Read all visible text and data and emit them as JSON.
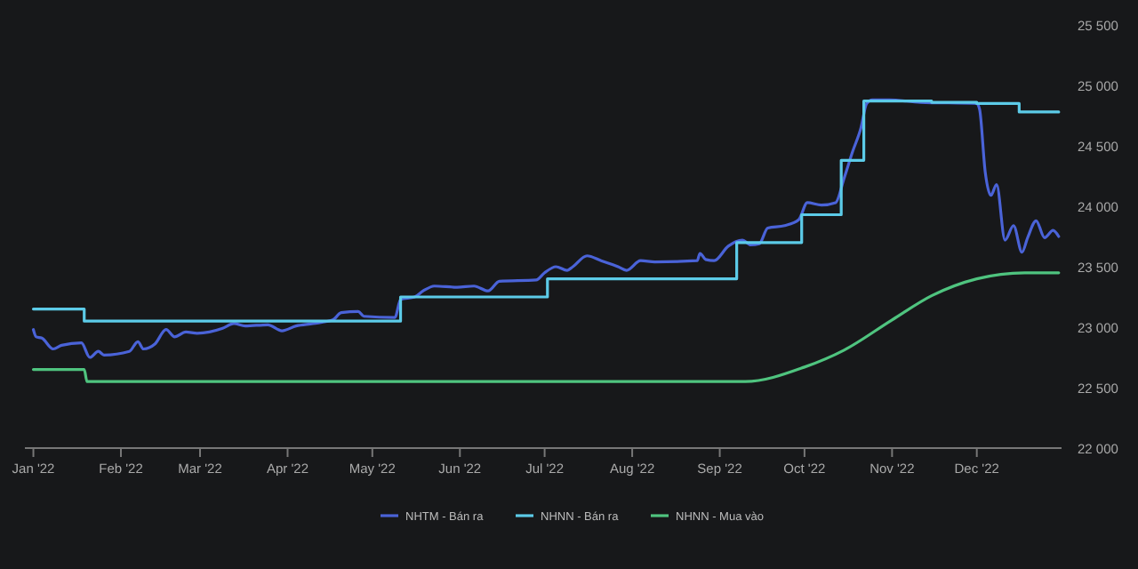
{
  "chart_data": {
    "type": "line",
    "legend": "bottom",
    "grid": false,
    "xlim": [
      "2021-12-29",
      "2022-12-31"
    ],
    "xticks": [
      {
        "value": "2022-01-01",
        "label": "Jan '22"
      },
      {
        "value": "2022-02-01",
        "label": "Feb '22"
      },
      {
        "value": "2022-03-01",
        "label": "Mar '22"
      },
      {
        "value": "2022-04-01",
        "label": "Apr '22"
      },
      {
        "value": "2022-05-01",
        "label": "May '22"
      },
      {
        "value": "2022-06-01",
        "label": "Jun '22"
      },
      {
        "value": "2022-07-01",
        "label": "Jul '22"
      },
      {
        "value": "2022-08-01",
        "label": "Aug '22"
      },
      {
        "value": "2022-09-01",
        "label": "Sep '22"
      },
      {
        "value": "2022-10-01",
        "label": "Oct '22"
      },
      {
        "value": "2022-11-01",
        "label": "Nov '22"
      },
      {
        "value": "2022-12-01",
        "label": "Dec '22"
      }
    ],
    "ylim": [
      22000,
      25500
    ],
    "yticks": [
      {
        "value": 22000,
        "label": "22 000"
      },
      {
        "value": 22500,
        "label": "22 500"
      },
      {
        "value": 23000,
        "label": "23 000"
      },
      {
        "value": 23500,
        "label": "23 500"
      },
      {
        "value": 24000,
        "label": "24 000"
      },
      {
        "value": 24500,
        "label": "24 500"
      },
      {
        "value": 25000,
        "label": "25 000"
      },
      {
        "value": 25500,
        "label": "25 500"
      }
    ],
    "series": [
      {
        "name": "NHTM - Bán ra",
        "color": "#4a63d8",
        "x": [
          "2022-01-01",
          "2022-01-02",
          "2022-01-04",
          "2022-01-08",
          "2022-01-11",
          "2022-01-18",
          "2022-01-21",
          "2022-01-24",
          "2022-01-26",
          "2022-02-04",
          "2022-02-07",
          "2022-02-09",
          "2022-02-13",
          "2022-02-17",
          "2022-02-20",
          "2022-02-24",
          "2022-02-28",
          "2022-03-09",
          "2022-03-13",
          "2022-03-17",
          "2022-03-25",
          "2022-03-30",
          "2022-04-04",
          "2022-04-10",
          "2022-04-17",
          "2022-04-20",
          "2022-04-26",
          "2022-04-28",
          "2022-05-09",
          "2022-05-11",
          "2022-05-16",
          "2022-05-19",
          "2022-05-23",
          "2022-05-31",
          "2022-06-06",
          "2022-06-11",
          "2022-06-15",
          "2022-06-28",
          "2022-07-01",
          "2022-07-05",
          "2022-07-09",
          "2022-07-11",
          "2022-07-16",
          "2022-07-21",
          "2022-07-27",
          "2022-07-30",
          "2022-08-04",
          "2022-08-09",
          "2022-08-24",
          "2022-08-25",
          "2022-08-27",
          "2022-08-30",
          "2022-09-04",
          "2022-09-09",
          "2022-09-12",
          "2022-09-15",
          "2022-09-18",
          "2022-09-24",
          "2022-09-29",
          "2022-10-02",
          "2022-10-07",
          "2022-10-12",
          "2022-10-15",
          "2022-10-18",
          "2022-10-21",
          "2022-10-23",
          "2022-10-25",
          "2022-10-31",
          "2022-11-11",
          "2022-12-01",
          "2022-12-02",
          "2022-12-04",
          "2022-12-06",
          "2022-12-08",
          "2022-12-11",
          "2022-12-14",
          "2022-12-17",
          "2022-12-19",
          "2022-12-22",
          "2022-12-25",
          "2022-12-28",
          "2022-12-30"
        ],
        "values": [
          22980,
          22920,
          22910,
          22820,
          22850,
          22870,
          22750,
          22800,
          22770,
          22800,
          22880,
          22820,
          22860,
          22980,
          22920,
          22960,
          22950,
          22990,
          23030,
          23010,
          23020,
          22970,
          23010,
          23030,
          23060,
          23120,
          23130,
          23090,
          23080,
          23230,
          23250,
          23300,
          23340,
          23330,
          23340,
          23300,
          23380,
          23390,
          23450,
          23500,
          23470,
          23500,
          23590,
          23550,
          23500,
          23470,
          23550,
          23540,
          23550,
          23610,
          23560,
          23550,
          23670,
          23720,
          23680,
          23690,
          23820,
          23840,
          23890,
          24030,
          24010,
          24030,
          24230,
          24450,
          24650,
          24850,
          24880,
          24880,
          24860,
          24850,
          24800,
          24280,
          24090,
          24180,
          23720,
          23840,
          23620,
          23740,
          23880,
          23740,
          23800,
          23750
        ]
      },
      {
        "name": "NHNN - Bán ra",
        "type": "step",
        "color": "#5ccbe8",
        "x": [
          "2022-01-01",
          "2022-01-19",
          "2022-05-11",
          "2022-07-02",
          "2022-09-07",
          "2022-09-30",
          "2022-10-14",
          "2022-10-22",
          "2022-11-15",
          "2022-12-01",
          "2022-12-16",
          "2022-12-30"
        ],
        "values": [
          23150,
          23050,
          23250,
          23400,
          23700,
          23930,
          24380,
          24870,
          24860,
          24850,
          24780,
          24780
        ]
      },
      {
        "name": "NHNN - Mua vào",
        "color": "#4fc47f",
        "x": [
          "2022-01-01",
          "2022-01-19",
          "2022-01-20",
          "2022-09-10",
          "2022-10-01",
          "2022-10-15",
          "2022-11-01",
          "2022-11-15",
          "2022-12-01",
          "2022-12-18",
          "2022-12-30"
        ],
        "values": [
          22650,
          22650,
          22550,
          22550,
          22670,
          22810,
          23060,
          23260,
          23400,
          23450,
          23450
        ]
      }
    ]
  }
}
